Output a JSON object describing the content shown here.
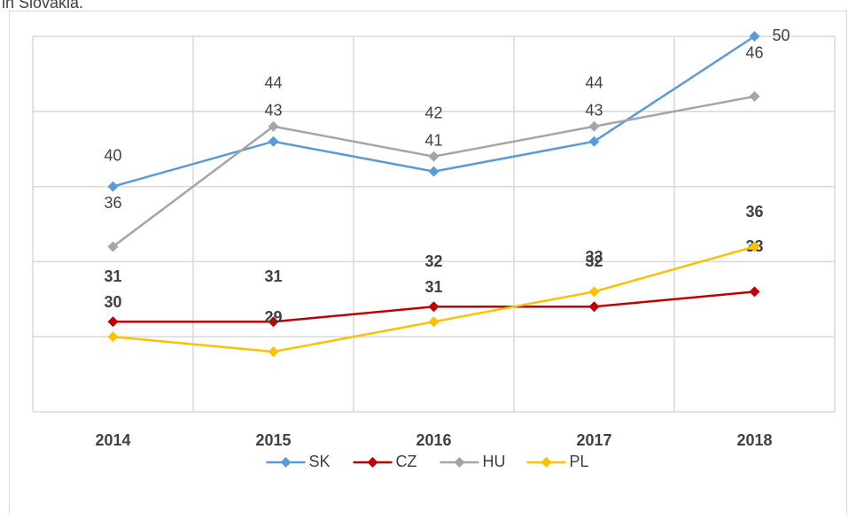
{
  "caption": "in Slovakia.",
  "chart_data": {
    "type": "line",
    "categories": [
      "2014",
      "2015",
      "2016",
      "2017",
      "2018"
    ],
    "series": [
      {
        "name": "SK",
        "color": "#5b9bd5",
        "values": [
          40,
          43,
          41,
          43,
          50
        ]
      },
      {
        "name": "CZ",
        "color": "#c00000",
        "values": [
          31,
          31,
          32,
          32,
          33
        ]
      },
      {
        "name": "HU",
        "color": "#a5a5a5",
        "values": [
          36,
          44,
          42,
          44,
          46
        ]
      },
      {
        "name": "PL",
        "color": "#ffc000",
        "values": [
          30,
          29,
          31,
          33,
          36
        ]
      }
    ],
    "ylim": [
      25,
      50
    ],
    "yticks": [
      25,
      30,
      35,
      40,
      45,
      50
    ],
    "grid": true,
    "legend": "bottom"
  }
}
